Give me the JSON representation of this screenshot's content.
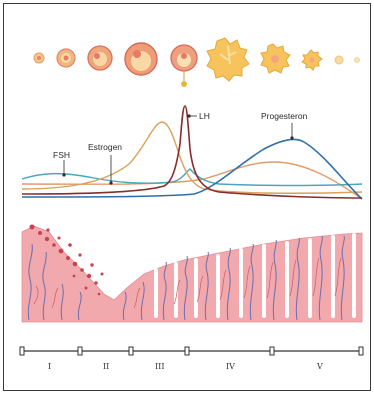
{
  "labels": {
    "fsh": "FSH",
    "estrogen": "Estrogen",
    "lh": "LH",
    "progesterone": "Progesteron"
  },
  "phases": [
    "I",
    "II",
    "III",
    "IV",
    "V"
  ],
  "colors": {
    "fsh": "#4aa7b8",
    "estrogen": "#d9a25a",
    "lh": "#8b2b2b",
    "progesterone": "#2f6fa8",
    "progesterone_secondary": "#e39a6c",
    "endometrium": "#f2a9ad",
    "vessel": "#6a6fb0",
    "follicle_outer": "#f0b07a",
    "follicle_inner": "#f7d9a0",
    "corpus": "#f5c85a"
  }
}
